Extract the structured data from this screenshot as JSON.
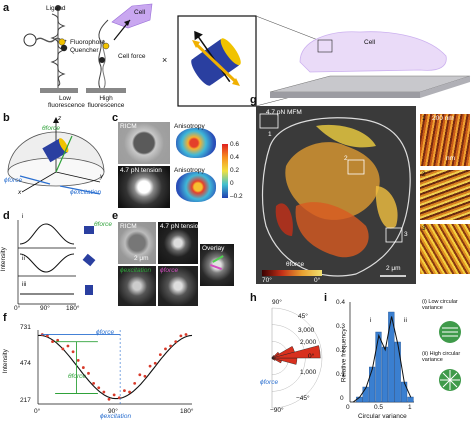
{
  "panels": {
    "a": {
      "letter": "a",
      "ligand": "Ligand",
      "fluorophore": "Fluorophore",
      "quencher": "Quencher",
      "low_fluorescence": "Low fluorescence",
      "high_fluorescence": "High fluorescence",
      "cell_force": "Cell force",
      "cell_small": "Cell",
      "cell_right": "Cell",
      "times": "×"
    },
    "b": {
      "letter": "b",
      "z": "z",
      "y": "y",
      "x": "x",
      "theta_force": "θforce",
      "phi_force": "ϕforce",
      "phi_excitation": "ϕexcitation"
    },
    "c": {
      "letter": "c",
      "ricm": "RICM",
      "anisotropy": "Anisotropy",
      "tension": "4.7 pN tension",
      "anisotropy2": "Anisotropy",
      "colorbar_ticks": [
        "0.6",
        "0.4",
        "0.2",
        "0",
        "–0.2"
      ]
    },
    "d": {
      "letter": "d",
      "ylabel": "Intensity",
      "rows": [
        "i",
        "ii",
        "iii"
      ],
      "xticks": [
        "0°",
        "90°",
        "180°"
      ],
      "theta_force": "θforce"
    },
    "e": {
      "letter": "e",
      "ricm": "RICM",
      "tension": "4.7 pN tension",
      "overlay": "Overlay",
      "scale": "2 μm",
      "phi_excitation": "ϕexcitation",
      "phi_force": "ϕforce"
    },
    "f": {
      "letter": "f",
      "ylabel": "Intensity",
      "yticks": [
        "731",
        "474",
        "217"
      ],
      "xticks": [
        "0°",
        "90°",
        "180°"
      ],
      "phi_force": "ϕforce",
      "theta_force": "θforce",
      "phi_excitation": "ϕexcitation"
    },
    "g": {
      "letter": "g",
      "title": "4.7 pN MFM",
      "scale": "2 μm",
      "theta_label": "θforce",
      "cbar_low": "70°",
      "cbar_high": "0°",
      "roi_labels": [
        "1",
        "2",
        "3"
      ],
      "inset_nums": [
        "1",
        "2",
        "3"
      ],
      "inset_scale_top": "200 nm",
      "inset_scale_bottom": "nm"
    },
    "h": {
      "letter": "h",
      "angles": [
        "90°",
        "45°",
        "0°",
        "−45°",
        "−90°"
      ],
      "radial": [
        "1,000",
        "2,000",
        "3,000"
      ],
      "phi_force": "ϕforce"
    },
    "i": {
      "letter": "i",
      "ylabel": "Relative frequency",
      "xlabel": "Circular variance",
      "xticks": [
        "0",
        "0.5",
        "1"
      ],
      "yticks": [
        "0.4",
        "0.3",
        "0.2",
        "0.1",
        "0"
      ],
      "marks": [
        "i",
        "ii"
      ],
      "legend_i": "(i)  Low circular variance",
      "legend_ii": "(ii)  High circular variance"
    }
  },
  "chart_data": [
    {
      "type": "scatter",
      "title": "",
      "xlabel": "",
      "ylabel": "Intensity",
      "xlim": [
        0,
        180
      ],
      "ylim": [
        217,
        731
      ],
      "series": [
        {
          "x": [
            5,
            11,
            17,
            23,
            29,
            35,
            41,
            47,
            53,
            59,
            65,
            71,
            77,
            83,
            89,
            95,
            101,
            107,
            113,
            119,
            125,
            131,
            137,
            143,
            149,
            155,
            161,
            167,
            173
          ],
          "values": [
            700,
            690,
            650,
            660,
            600,
            620,
            580,
            520,
            470,
            430,
            360,
            330,
            300,
            250,
            280,
            260,
            310,
            300,
            360,
            420,
            410,
            480,
            500,
            560,
            600,
            620,
            650,
            690,
            700
          ]
        }
      ]
    },
    {
      "type": "bar",
      "title": "",
      "xlabel": "Circular variance",
      "ylabel": "Relative frequency",
      "xlim": [
        0,
        1
      ],
      "ylim": [
        0,
        0.4
      ],
      "categories": [
        "0.05",
        "0.15",
        "0.25",
        "0.35",
        "0.45",
        "0.55",
        "0.65",
        "0.75",
        "0.85",
        "0.95"
      ],
      "values": [
        0.0,
        0.02,
        0.06,
        0.14,
        0.28,
        0.22,
        0.36,
        0.24,
        0.08,
        0.02
      ]
    },
    {
      "type": "bar",
      "title": "",
      "xlabel": "",
      "ylabel": "",
      "categories": [
        "-90",
        "-75",
        "-60",
        "-45",
        "-30",
        "-15",
        "0",
        "15",
        "30",
        "45",
        "60",
        "75"
      ],
      "values": [
        40,
        60,
        120,
        220,
        600,
        1500,
        2900,
        1400,
        500,
        180,
        80,
        40
      ]
    }
  ]
}
